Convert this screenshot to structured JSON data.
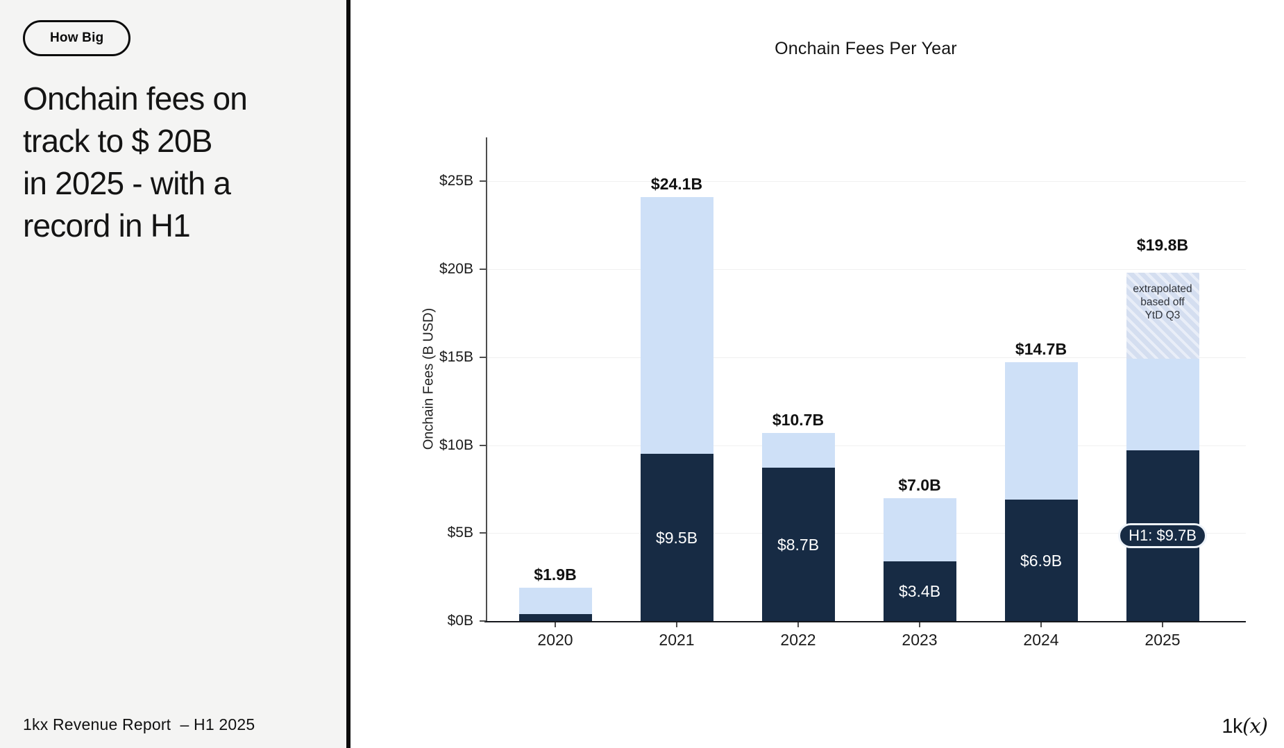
{
  "left_panel": {
    "badge_label": "How Big",
    "headline_lines": [
      "Onchain fees on",
      "track to $ 20B",
      "in 2025 - with a",
      "record in H1"
    ],
    "footer": "1kx Revenue Report  – H1 2025"
  },
  "logo": {
    "prefix": "1k",
    "suffix": "(x)"
  },
  "colors": {
    "h1_dark": "#172b44",
    "h2_light": "#cee0f7",
    "hatch_base": "#d4def0",
    "left_panel_bg": "#f4f4f3",
    "gridline": "#f0f0f0"
  },
  "chart_data": {
    "type": "bar",
    "stacked": true,
    "title": "Onchain Fees Per Year",
    "xlabel": "",
    "ylabel": "Onchain Fees (B USD)",
    "categories": [
      "2020",
      "2021",
      "2022",
      "2023",
      "2024",
      "2025"
    ],
    "series": [
      {
        "name": "H1 fees (dark navy)",
        "color": "#172b44",
        "values": [
          0.4,
          9.5,
          8.7,
          3.4,
          6.9,
          9.7
        ]
      },
      {
        "name": "H2 fees (light blue)",
        "color": "#cee0f7",
        "values": [
          1.5,
          14.6,
          2.0,
          3.6,
          7.8,
          5.2
        ]
      },
      {
        "name": "extrapolated (hatched)",
        "color": "#d4def0",
        "values": [
          0,
          0,
          0,
          0,
          0,
          4.9
        ]
      }
    ],
    "totals": [
      1.9,
      24.1,
      10.7,
      7.0,
      14.7,
      19.8
    ],
    "total_labels": [
      "$1.9B",
      "$24.1B",
      "$10.7B",
      "$7.0B",
      "$14.7B",
      "$19.8B"
    ],
    "inside_labels": [
      "",
      "$9.5B",
      "$8.7B",
      "$3.4B",
      "$6.9B",
      ""
    ],
    "pill": {
      "category": "2025",
      "label": "H1: $9.7B"
    },
    "hatch_annotation_lines": [
      "extrapolated",
      "based off",
      "YtD Q3"
    ],
    "ytick_labels": [
      "$0B",
      "$5B",
      "$10B",
      "$15B",
      "$20B",
      "$25B"
    ],
    "ytick_values": [
      0,
      5,
      10,
      15,
      20,
      25
    ],
    "ylim": [
      0,
      27.5
    ],
    "grid": "horizontal",
    "legend_position": "none"
  }
}
